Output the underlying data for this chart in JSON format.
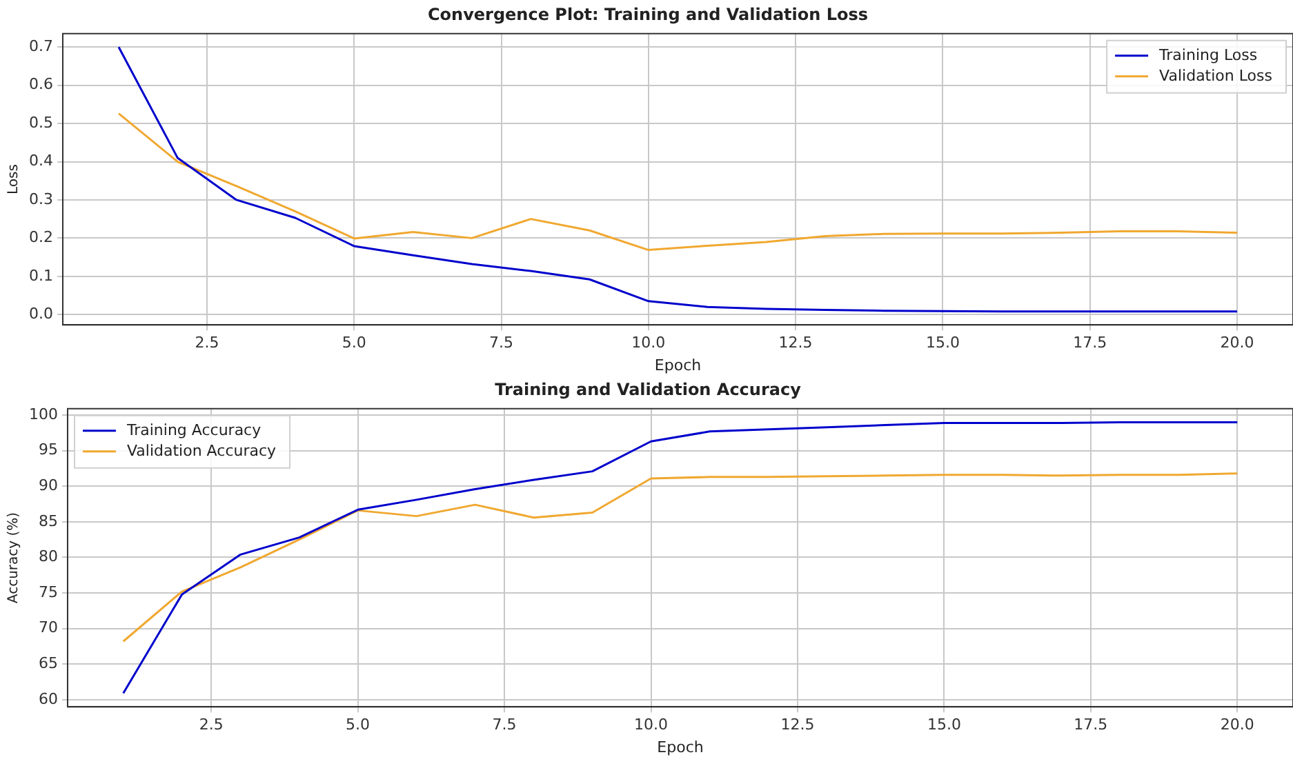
{
  "chart_data": [
    {
      "type": "line",
      "title": "Convergence Plot: Training and Validation Loss",
      "xlabel": "Epoch",
      "ylabel": "Loss",
      "x": [
        1,
        2,
        3,
        4,
        5,
        6,
        7,
        8,
        9,
        10,
        11,
        12,
        13,
        14,
        15,
        16,
        17,
        18,
        19,
        20
      ],
      "series": [
        {
          "name": "Training Loss",
          "color": "#0000cc",
          "values": [
            0.7,
            0.41,
            0.3,
            0.253,
            0.179,
            0.155,
            0.132,
            0.114,
            0.092,
            0.035,
            0.02,
            0.015,
            0.012,
            0.01,
            0.009,
            0.008,
            0.008,
            0.008,
            0.008,
            0.008
          ]
        },
        {
          "name": "Validation Loss",
          "color": "#f0a830",
          "values": [
            0.526,
            0.4,
            0.336,
            0.27,
            0.199,
            0.216,
            0.2,
            0.25,
            0.22,
            0.169,
            0.18,
            0.19,
            0.205,
            0.211,
            0.212,
            0.212,
            0.214,
            0.218,
            0.218,
            0.214
          ]
        }
      ],
      "xlim": [
        0.05,
        20.95
      ],
      "ylim": [
        -0.027,
        0.735
      ],
      "xticks": [
        2.5,
        {
          "value": 5,
          "label": "5.0"
        },
        7.5,
        {
          "value": 10,
          "label": "10.0"
        },
        12.5,
        {
          "value": 15,
          "label": "15.0"
        },
        17.5,
        {
          "value": 20,
          "label": "20.0"
        }
      ],
      "yticks": [
        {
          "value": 0,
          "label": "0.0"
        },
        0.1,
        0.2,
        0.3,
        0.4,
        0.5,
        0.6,
        0.7
      ],
      "grid": true,
      "legend": "top right"
    },
    {
      "type": "line",
      "title": "Training and Validation Accuracy",
      "xlabel": "Epoch",
      "ylabel": "Accuracy (%)",
      "x": [
        1,
        2,
        3,
        4,
        5,
        6,
        7,
        8,
        9,
        10,
        11,
        12,
        13,
        14,
        15,
        16,
        17,
        18,
        19,
        20
      ],
      "series": [
        {
          "name": "Training Accuracy",
          "color": "#0000cc",
          "values": [
            60.9,
            74.8,
            80.4,
            82.8,
            86.7,
            88.1,
            89.6,
            90.9,
            92.1,
            96.3,
            97.7,
            98.0,
            98.3,
            98.6,
            98.9,
            98.9,
            98.9,
            99.0,
            99.0,
            99.0
          ]
        },
        {
          "name": "Validation Accuracy",
          "color": "#f0a830",
          "values": [
            68.2,
            75.2,
            78.6,
            82.5,
            86.6,
            85.8,
            87.4,
            85.6,
            86.3,
            91.1,
            91.3,
            91.3,
            91.4,
            91.5,
            91.6,
            91.6,
            91.5,
            91.6,
            91.6,
            91.8
          ]
        }
      ],
      "xlim": [
        0.05,
        20.95
      ],
      "ylim": [
        59,
        100.9
      ],
      "xticks": [
        2.5,
        {
          "value": 5,
          "label": "5.0"
        },
        7.5,
        {
          "value": 10,
          "label": "10.0"
        },
        12.5,
        {
          "value": 15,
          "label": "15.0"
        },
        17.5,
        {
          "value": 20,
          "label": "20.0"
        }
      ],
      "yticks": [
        60,
        65,
        70,
        75,
        80,
        85,
        90,
        95,
        100
      ],
      "grid": true,
      "legend": "top left"
    }
  ]
}
